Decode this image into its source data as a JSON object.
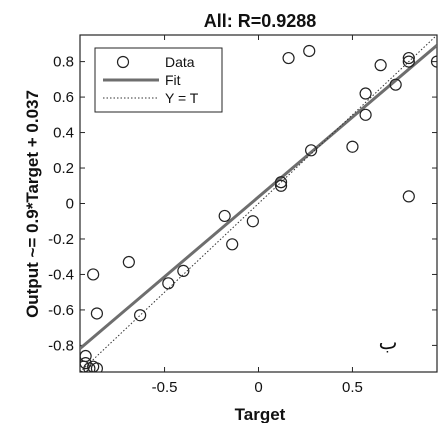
{
  "chart_data": {
    "type": "scatter",
    "title": "All: R=0.9288",
    "xlabel": "Target",
    "ylabel": "Output ~= 0.9*Target + 0.037",
    "xlim": [
      -0.95,
      0.95
    ],
    "ylim": [
      -0.95,
      0.95
    ],
    "xticks": [
      -0.5,
      0,
      0.5
    ],
    "xtick_labels": [
      "-0.5",
      "0",
      "0.5"
    ],
    "yticks": [
      0.8,
      0.6,
      0.4,
      0.2,
      0,
      -0.2,
      -0.4,
      -0.6,
      -0.8
    ],
    "ytick_labels": [
      "0.8",
      "0.6",
      "0.4",
      "0.2",
      "0",
      "-0.2",
      "-0.4",
      "-0.6",
      "-0.8"
    ],
    "grid": false,
    "legend_position": "top-left",
    "annotation": "ب",
    "series": [
      {
        "name": "Data",
        "kind": "markers",
        "marker": "open-circle",
        "color": "#222222",
        "points": [
          [
            -0.93,
            -0.92
          ],
          [
            -0.92,
            -0.9
          ],
          [
            -0.9,
            -0.93
          ],
          [
            -0.88,
            -0.92
          ],
          [
            -0.86,
            -0.93
          ],
          [
            -0.92,
            -0.86
          ],
          [
            -0.88,
            -0.4
          ],
          [
            -0.86,
            -0.62
          ],
          [
            -0.69,
            -0.33
          ],
          [
            -0.63,
            -0.63
          ],
          [
            -0.48,
            -0.45
          ],
          [
            -0.4,
            -0.38
          ],
          [
            -0.18,
            -0.07
          ],
          [
            -0.14,
            -0.23
          ],
          [
            -0.03,
            -0.1
          ],
          [
            0.12,
            0.1
          ],
          [
            0.12,
            0.12
          ],
          [
            0.16,
            0.82
          ],
          [
            0.27,
            0.86
          ],
          [
            0.28,
            0.3
          ],
          [
            0.5,
            0.32
          ],
          [
            0.57,
            0.5
          ],
          [
            0.57,
            0.62
          ],
          [
            0.65,
            0.78
          ],
          [
            0.73,
            0.67
          ],
          [
            0.8,
            0.8
          ],
          [
            0.8,
            0.82
          ],
          [
            0.8,
            0.04
          ],
          [
            0.95,
            0.8
          ]
        ]
      },
      {
        "name": "Fit",
        "kind": "line",
        "color": "#6e6e6e",
        "x": [
          -0.95,
          0.95
        ],
        "y": [
          -0.818,
          0.892
        ]
      },
      {
        "name": "Y = T",
        "kind": "dotted-line",
        "color": "#333333",
        "x": [
          -0.95,
          0.95
        ],
        "y": [
          -0.95,
          0.95
        ]
      }
    ]
  }
}
